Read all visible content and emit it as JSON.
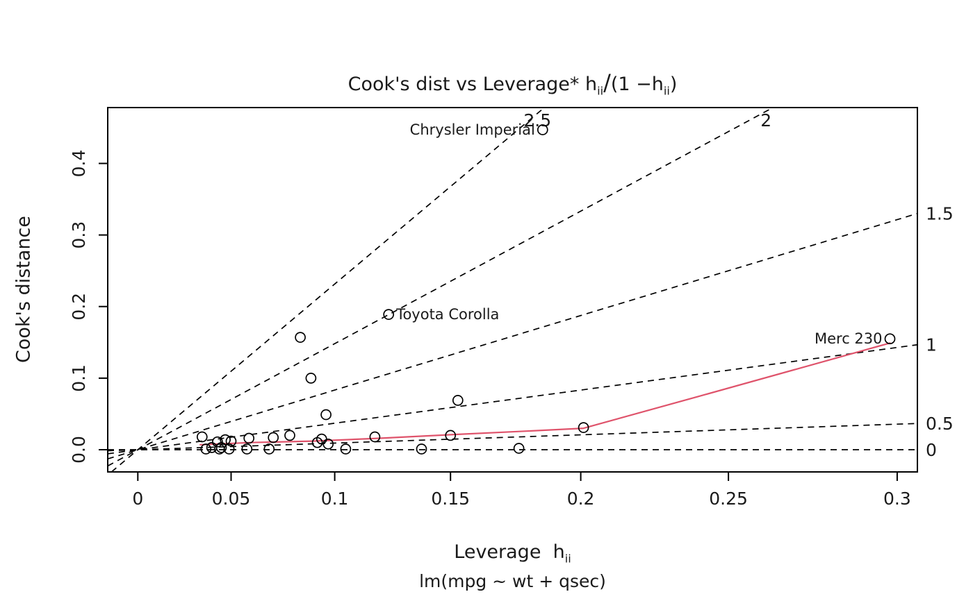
{
  "chart_data": {
    "type": "scatter",
    "title": {
      "full": "Cook's dist vs Leverage* h_ii/(1 −h_ii)",
      "pre": "Cook's dist vs Leverage* h",
      "sub1": "ii",
      "slash": "/",
      "mid": "(1 −h",
      "sub2": "ii",
      "post": ")"
    },
    "xlabel": {
      "full": "Leverage  h_ii",
      "pre": "Leverage  h",
      "sub": "ii"
    },
    "ylabel": "Cook's distance",
    "sub_caption": "lm(mpg ~ wt + qsec)",
    "x_axis": {
      "tick_labels": [
        "0",
        "0.05",
        "0.1",
        "0.15",
        "0.2",
        "0.25",
        "0.3"
      ],
      "tick_h": [
        0,
        0.05,
        0.1,
        0.15,
        0.2,
        0.25,
        0.3
      ],
      "scale": "h/(1-h)",
      "g_range": [
        -0.017,
        0.44
      ]
    },
    "y_axis": {
      "tick_labels": [
        "0.0",
        "0.1",
        "0.2",
        "0.3",
        "0.4"
      ],
      "tick_d": [
        0,
        0.1,
        0.2,
        0.3,
        0.4
      ],
      "d_range": [
        -0.031,
        0.478
      ]
    },
    "contours": {
      "note": "dashed lines of constant |standardized residual|: CookD = r^2/p * h/(1-h)",
      "levels": [
        0,
        0.5,
        1,
        1.5,
        2,
        2.5
      ],
      "labels": [
        "0",
        "0.5",
        "1",
        "1.5",
        "2",
        "2.5"
      ],
      "p": 3,
      "line_style": "dashed"
    },
    "points": [
      {
        "h": 0.035,
        "d": 0.018
      },
      {
        "h": 0.037,
        "d": 0.001
      },
      {
        "h": 0.04,
        "d": 0.003
      },
      {
        "h": 0.043,
        "d": 0.011
      },
      {
        "h": 0.044,
        "d": 0.001
      },
      {
        "h": 0.045,
        "d": 0.003
      },
      {
        "h": 0.047,
        "d": 0.014
      },
      {
        "h": 0.049,
        "d": 0.001
      },
      {
        "h": 0.05,
        "d": 0.012
      },
      {
        "h": 0.058,
        "d": 0.001
      },
      {
        "h": 0.059,
        "d": 0.016
      },
      {
        "h": 0.069,
        "d": 0.001
      },
      {
        "h": 0.071,
        "d": 0.017
      },
      {
        "h": 0.079,
        "d": 0.02
      },
      {
        "h": 0.084,
        "d": 0.157
      },
      {
        "h": 0.089,
        "d": 0.1
      },
      {
        "h": 0.092,
        "d": 0.01
      },
      {
        "h": 0.094,
        "d": 0.015
      },
      {
        "h": 0.096,
        "d": 0.049
      },
      {
        "h": 0.097,
        "d": 0.008
      },
      {
        "h": 0.105,
        "d": 0.001
      },
      {
        "h": 0.118,
        "d": 0.018
      },
      {
        "h": 0.138,
        "d": 0.001
      },
      {
        "h": 0.15,
        "d": 0.02
      },
      {
        "h": 0.153,
        "d": 0.069
      },
      {
        "h": 0.177,
        "d": 0.002
      },
      {
        "h": 0.201,
        "d": 0.031
      }
    ],
    "labeled_points": [
      {
        "label": "Chrysler Imperial",
        "h": 0.186,
        "d": 0.447,
        "label_side": "left"
      },
      {
        "label": "Toyota Corolla",
        "h": 0.124,
        "d": 0.189,
        "label_side": "right"
      },
      {
        "label": "Merc 230",
        "h": 0.298,
        "d": 0.155,
        "label_side": "left"
      }
    ],
    "smooth_line": {
      "name": "lowess-smooth",
      "color": "#DF536B",
      "points": [
        [
          0.034,
          0.007
        ],
        [
          0.06,
          0.01
        ],
        [
          0.09,
          0.012
        ],
        [
          0.12,
          0.016
        ],
        [
          0.15,
          0.021
        ],
        [
          0.18,
          0.026
        ],
        [
          0.201,
          0.03
        ],
        [
          0.24,
          0.074
        ],
        [
          0.298,
          0.149
        ]
      ]
    },
    "colors": {
      "foreground": "#000000",
      "text": "#1a1a1a",
      "background": "#ffffff",
      "smooth": "#DF536B"
    },
    "legend": "none",
    "grid": "off"
  }
}
